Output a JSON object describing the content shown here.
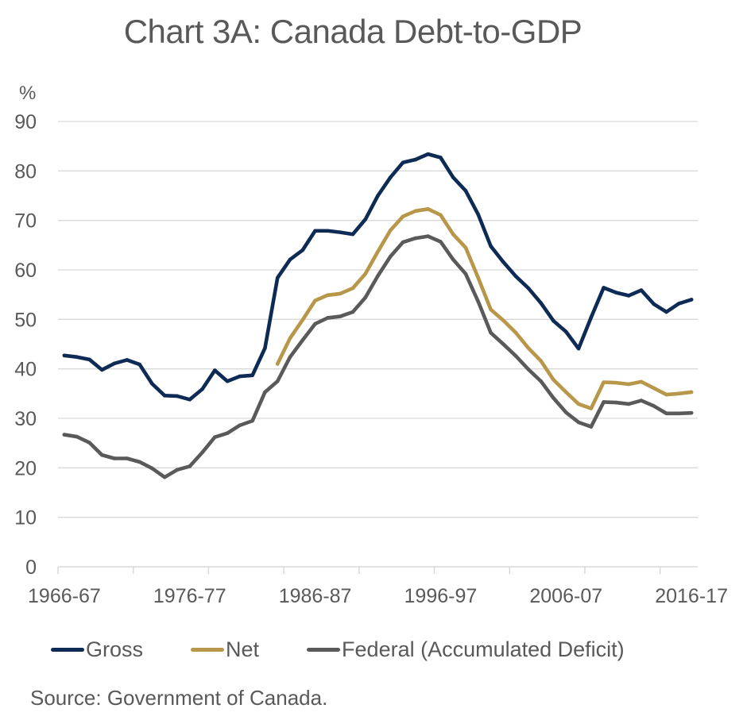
{
  "chart_data": {
    "type": "line",
    "title": "Chart 3A: Canada Debt-to-GDP",
    "ylabel": "%",
    "xlabel": "",
    "ylim": [
      0,
      90
    ],
    "yticks": [
      0,
      10,
      20,
      30,
      40,
      50,
      60,
      70,
      80,
      90
    ],
    "ytick_labels": [
      "0",
      "10",
      "20",
      "30",
      "40",
      "50",
      "60",
      "70",
      "80",
      "90"
    ],
    "grid": true,
    "x": [
      "1966-67",
      "1967-68",
      "1968-69",
      "1969-70",
      "1970-71",
      "1971-72",
      "1972-73",
      "1973-74",
      "1974-75",
      "1975-76",
      "1976-77",
      "1977-78",
      "1978-79",
      "1979-80",
      "1980-81",
      "1981-82",
      "1982-83",
      "1983-84",
      "1984-85",
      "1985-86",
      "1986-87",
      "1987-88",
      "1988-89",
      "1989-90",
      "1990-91",
      "1991-92",
      "1992-93",
      "1993-94",
      "1994-95",
      "1995-96",
      "1996-97",
      "1997-98",
      "1998-99",
      "1999-00",
      "2000-01",
      "2001-02",
      "2002-03",
      "2003-04",
      "2004-05",
      "2005-06",
      "2006-07",
      "2007-08",
      "2008-09",
      "2009-10",
      "2010-11",
      "2011-12",
      "2012-13",
      "2013-14",
      "2014-15",
      "2015-16",
      "2016-17"
    ],
    "xtick_labels": [
      "1966-67",
      "1976-77",
      "1986-87",
      "1996-97",
      "2006-07",
      "2016-17"
    ],
    "series": [
      {
        "name": "Gross",
        "color": "#0d2b55",
        "values": [
          42.7,
          42.4,
          41.9,
          39.8,
          41.1,
          41.8,
          40.9,
          37.0,
          34.6,
          34.5,
          33.8,
          35.9,
          39.7,
          37.5,
          38.5,
          38.7,
          44.2,
          58.4,
          62.1,
          64.0,
          67.9,
          67.9,
          67.6,
          67.2,
          70.2,
          75.0,
          78.7,
          81.7,
          82.3,
          83.4,
          82.7,
          78.7,
          76.0,
          71.2,
          64.8,
          61.6,
          58.7,
          56.3,
          53.3,
          49.7,
          47.5,
          44.1,
          50.4,
          56.4,
          55.4,
          54.8,
          55.9,
          53.1,
          51.5,
          53.2,
          54.0
        ]
      },
      {
        "name": "Net",
        "color": "#b8974a",
        "values": [
          null,
          null,
          null,
          null,
          null,
          null,
          null,
          null,
          null,
          null,
          null,
          null,
          null,
          null,
          null,
          null,
          null,
          41.0,
          46.2,
          49.9,
          53.8,
          54.9,
          55.2,
          56.3,
          59.2,
          63.7,
          68.0,
          70.8,
          71.9,
          72.3,
          71.1,
          67.2,
          64.5,
          58.4,
          52.0,
          49.8,
          47.3,
          44.2,
          41.6,
          37.8,
          35.3,
          32.9,
          32.0,
          37.3,
          37.2,
          36.9,
          37.4,
          36.1,
          34.8,
          35.0,
          35.3
        ]
      },
      {
        "name": "Federal (Accumulated Deficit)",
        "color": "#5a5a5a",
        "values": [
          26.7,
          26.3,
          25.1,
          22.6,
          21.9,
          21.9,
          21.2,
          19.9,
          18.1,
          19.6,
          20.3,
          23.1,
          26.2,
          27.0,
          28.6,
          29.5,
          35.3,
          37.5,
          42.4,
          45.8,
          49.1,
          50.3,
          50.6,
          51.5,
          54.4,
          58.8,
          62.7,
          65.6,
          66.4,
          66.8,
          65.7,
          62.1,
          59.2,
          53.6,
          47.3,
          45.0,
          42.6,
          39.9,
          37.5,
          34.1,
          31.2,
          29.2,
          28.3,
          33.3,
          33.2,
          32.9,
          33.6,
          32.5,
          31.0,
          31.0,
          31.1
        ]
      }
    ],
    "legend": "bottom",
    "source": "Source: Government of Canada."
  }
}
